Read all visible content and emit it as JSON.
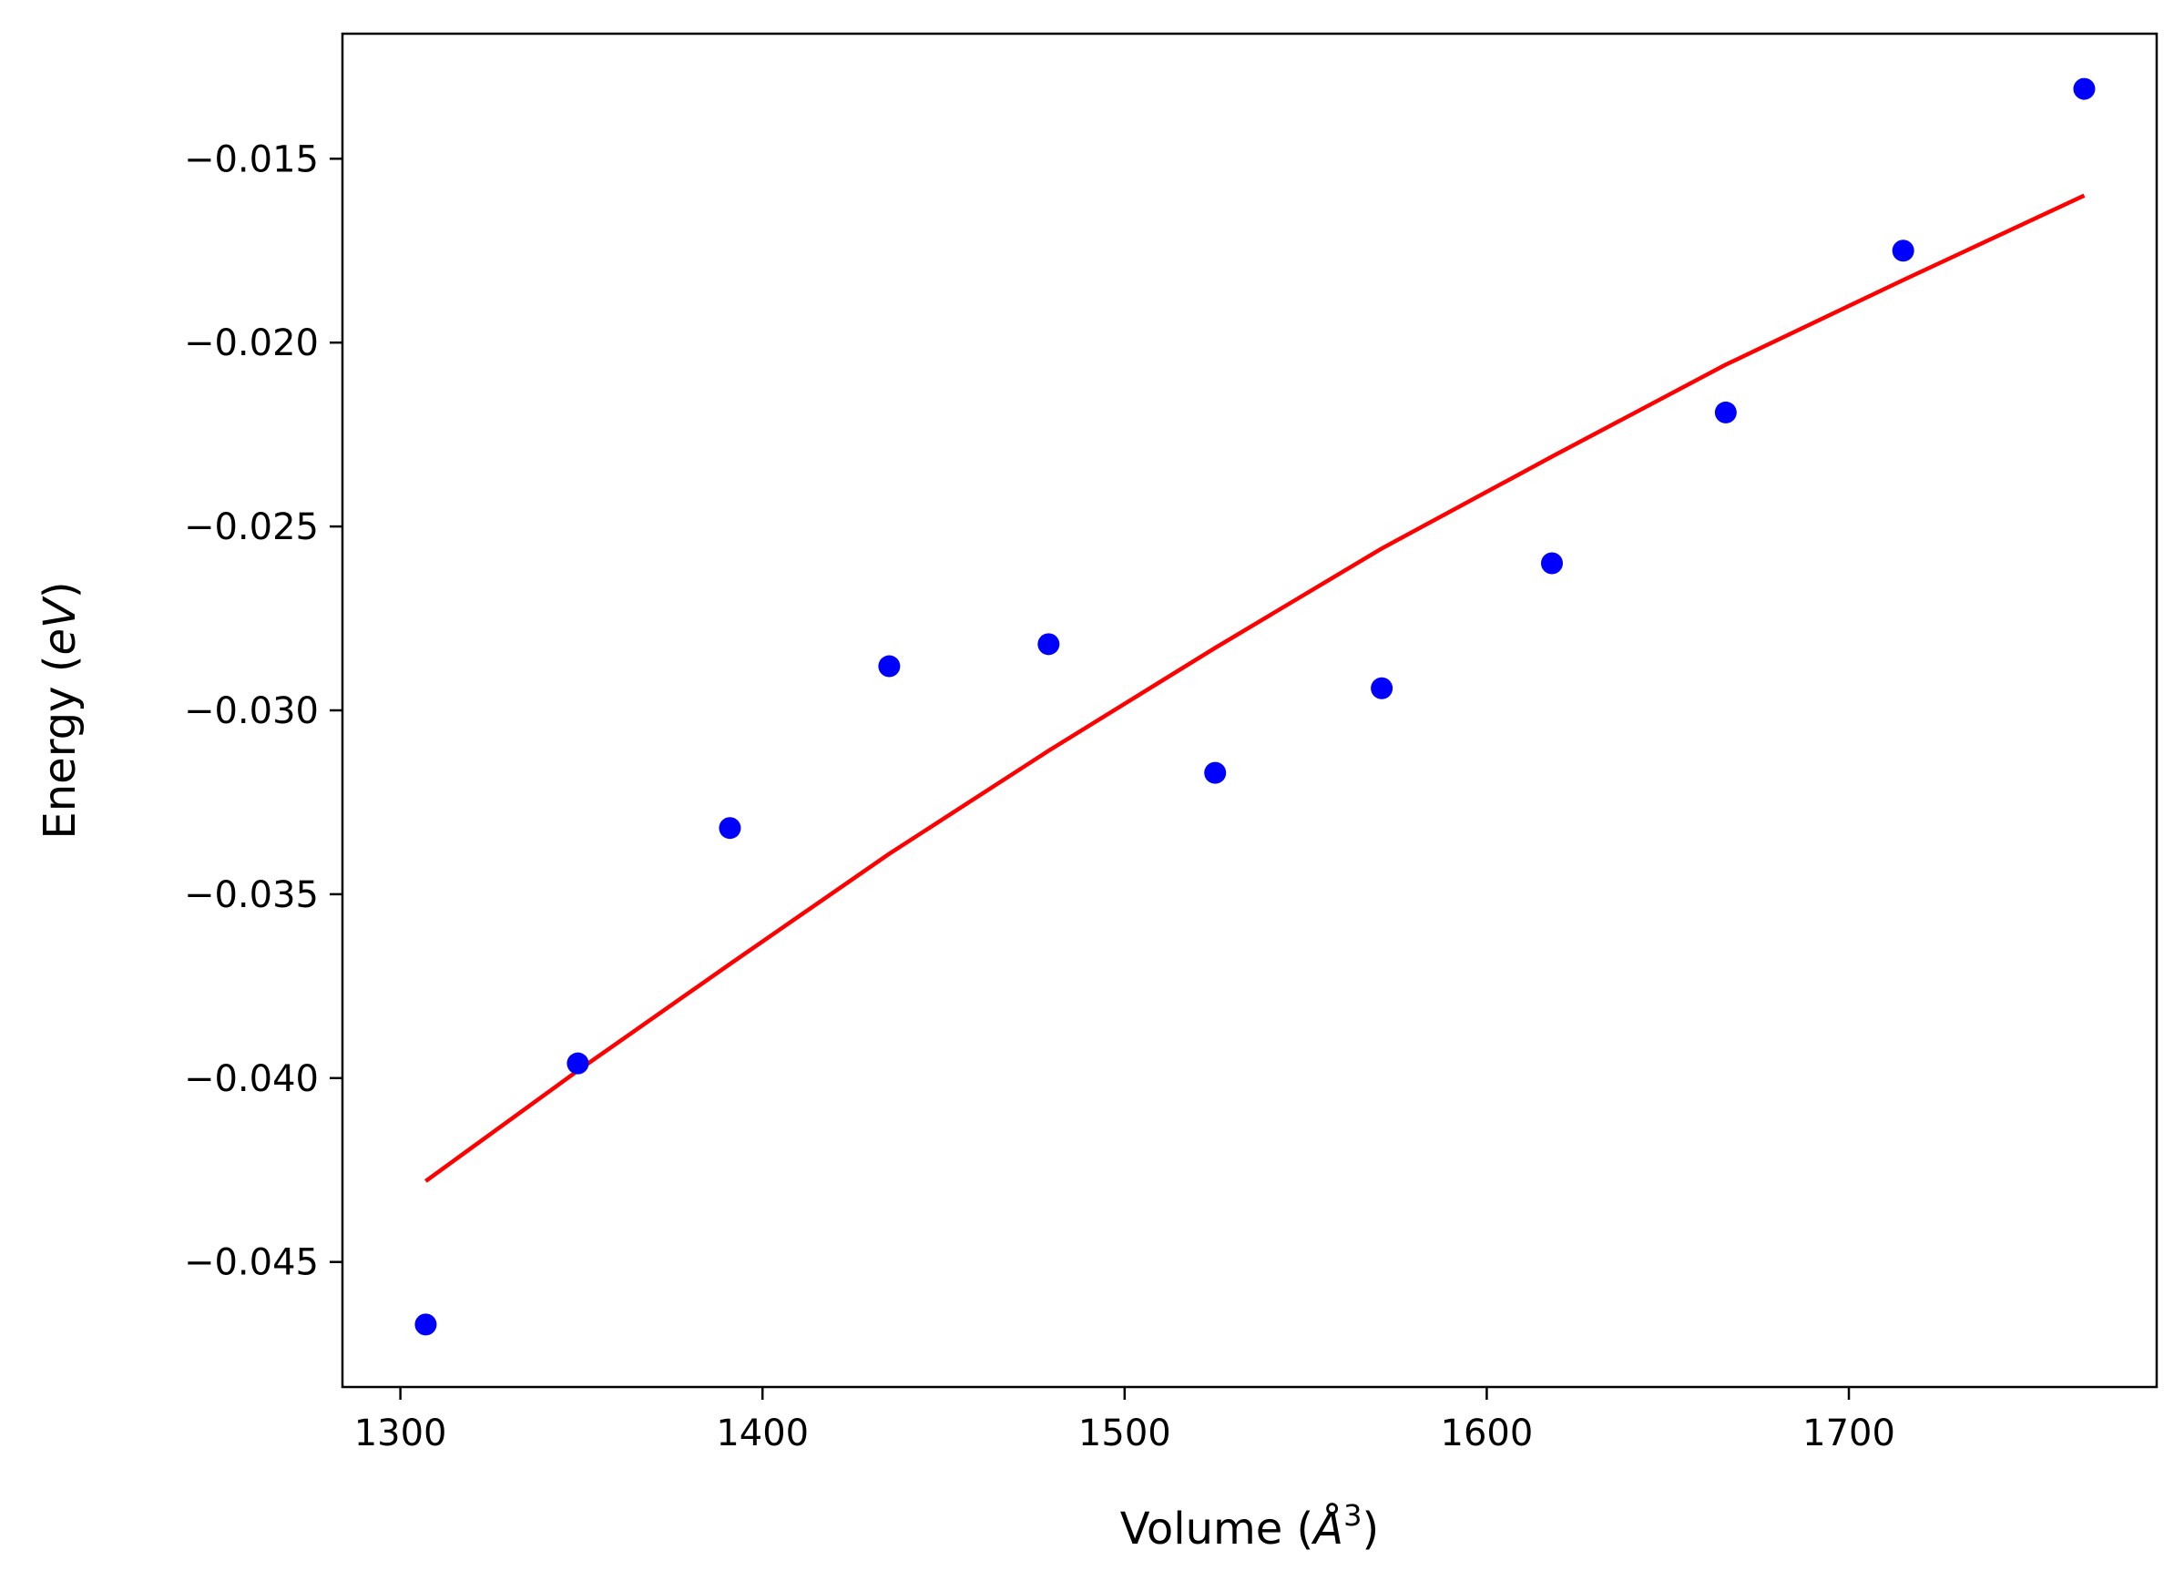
{
  "chart_data": {
    "type": "scatter",
    "xlabel_prefix": "Volume (",
    "xlabel_unit": "Å",
    "xlabel_exp": "3",
    "xlabel_suffix": ")",
    "ylabel_prefix": "Energy (",
    "ylabel_unit": "eV",
    "ylabel_suffix": ")",
    "xlim": [
      1284,
      1785
    ],
    "ylim": [
      -0.0484,
      -0.0116
    ],
    "xticks": [
      1300,
      1400,
      1500,
      1600,
      1700
    ],
    "yticks": [
      -0.045,
      -0.04,
      -0.035,
      -0.03,
      -0.025,
      -0.02,
      -0.015
    ],
    "ytick_labels": [
      "−0.045",
      "−0.040",
      "−0.035",
      "−0.030",
      "−0.025",
      "−0.020",
      "−0.015"
    ],
    "grid": false,
    "series": [
      {
        "kind": "scatter",
        "color": "#0000ff",
        "x": [
          1307,
          1349,
          1391,
          1435,
          1479,
          1525,
          1571,
          1618,
          1666,
          1715,
          1765
        ],
        "y": [
          -0.0467,
          -0.0396,
          -0.0332,
          -0.0288,
          -0.0282,
          -0.0317,
          -0.0294,
          -0.026,
          -0.0219,
          -0.0175,
          -0.0131
        ]
      },
      {
        "kind": "line",
        "color": "#ff0000",
        "x": [
          1307,
          1349,
          1391,
          1435,
          1479,
          1525,
          1571,
          1618,
          1666,
          1715,
          1765
        ],
        "y": [
          -0.0428,
          -0.0398,
          -0.0369,
          -0.0339,
          -0.0311,
          -0.0283,
          -0.0256,
          -0.0231,
          -0.0206,
          -0.0183,
          -0.016
        ]
      }
    ]
  }
}
